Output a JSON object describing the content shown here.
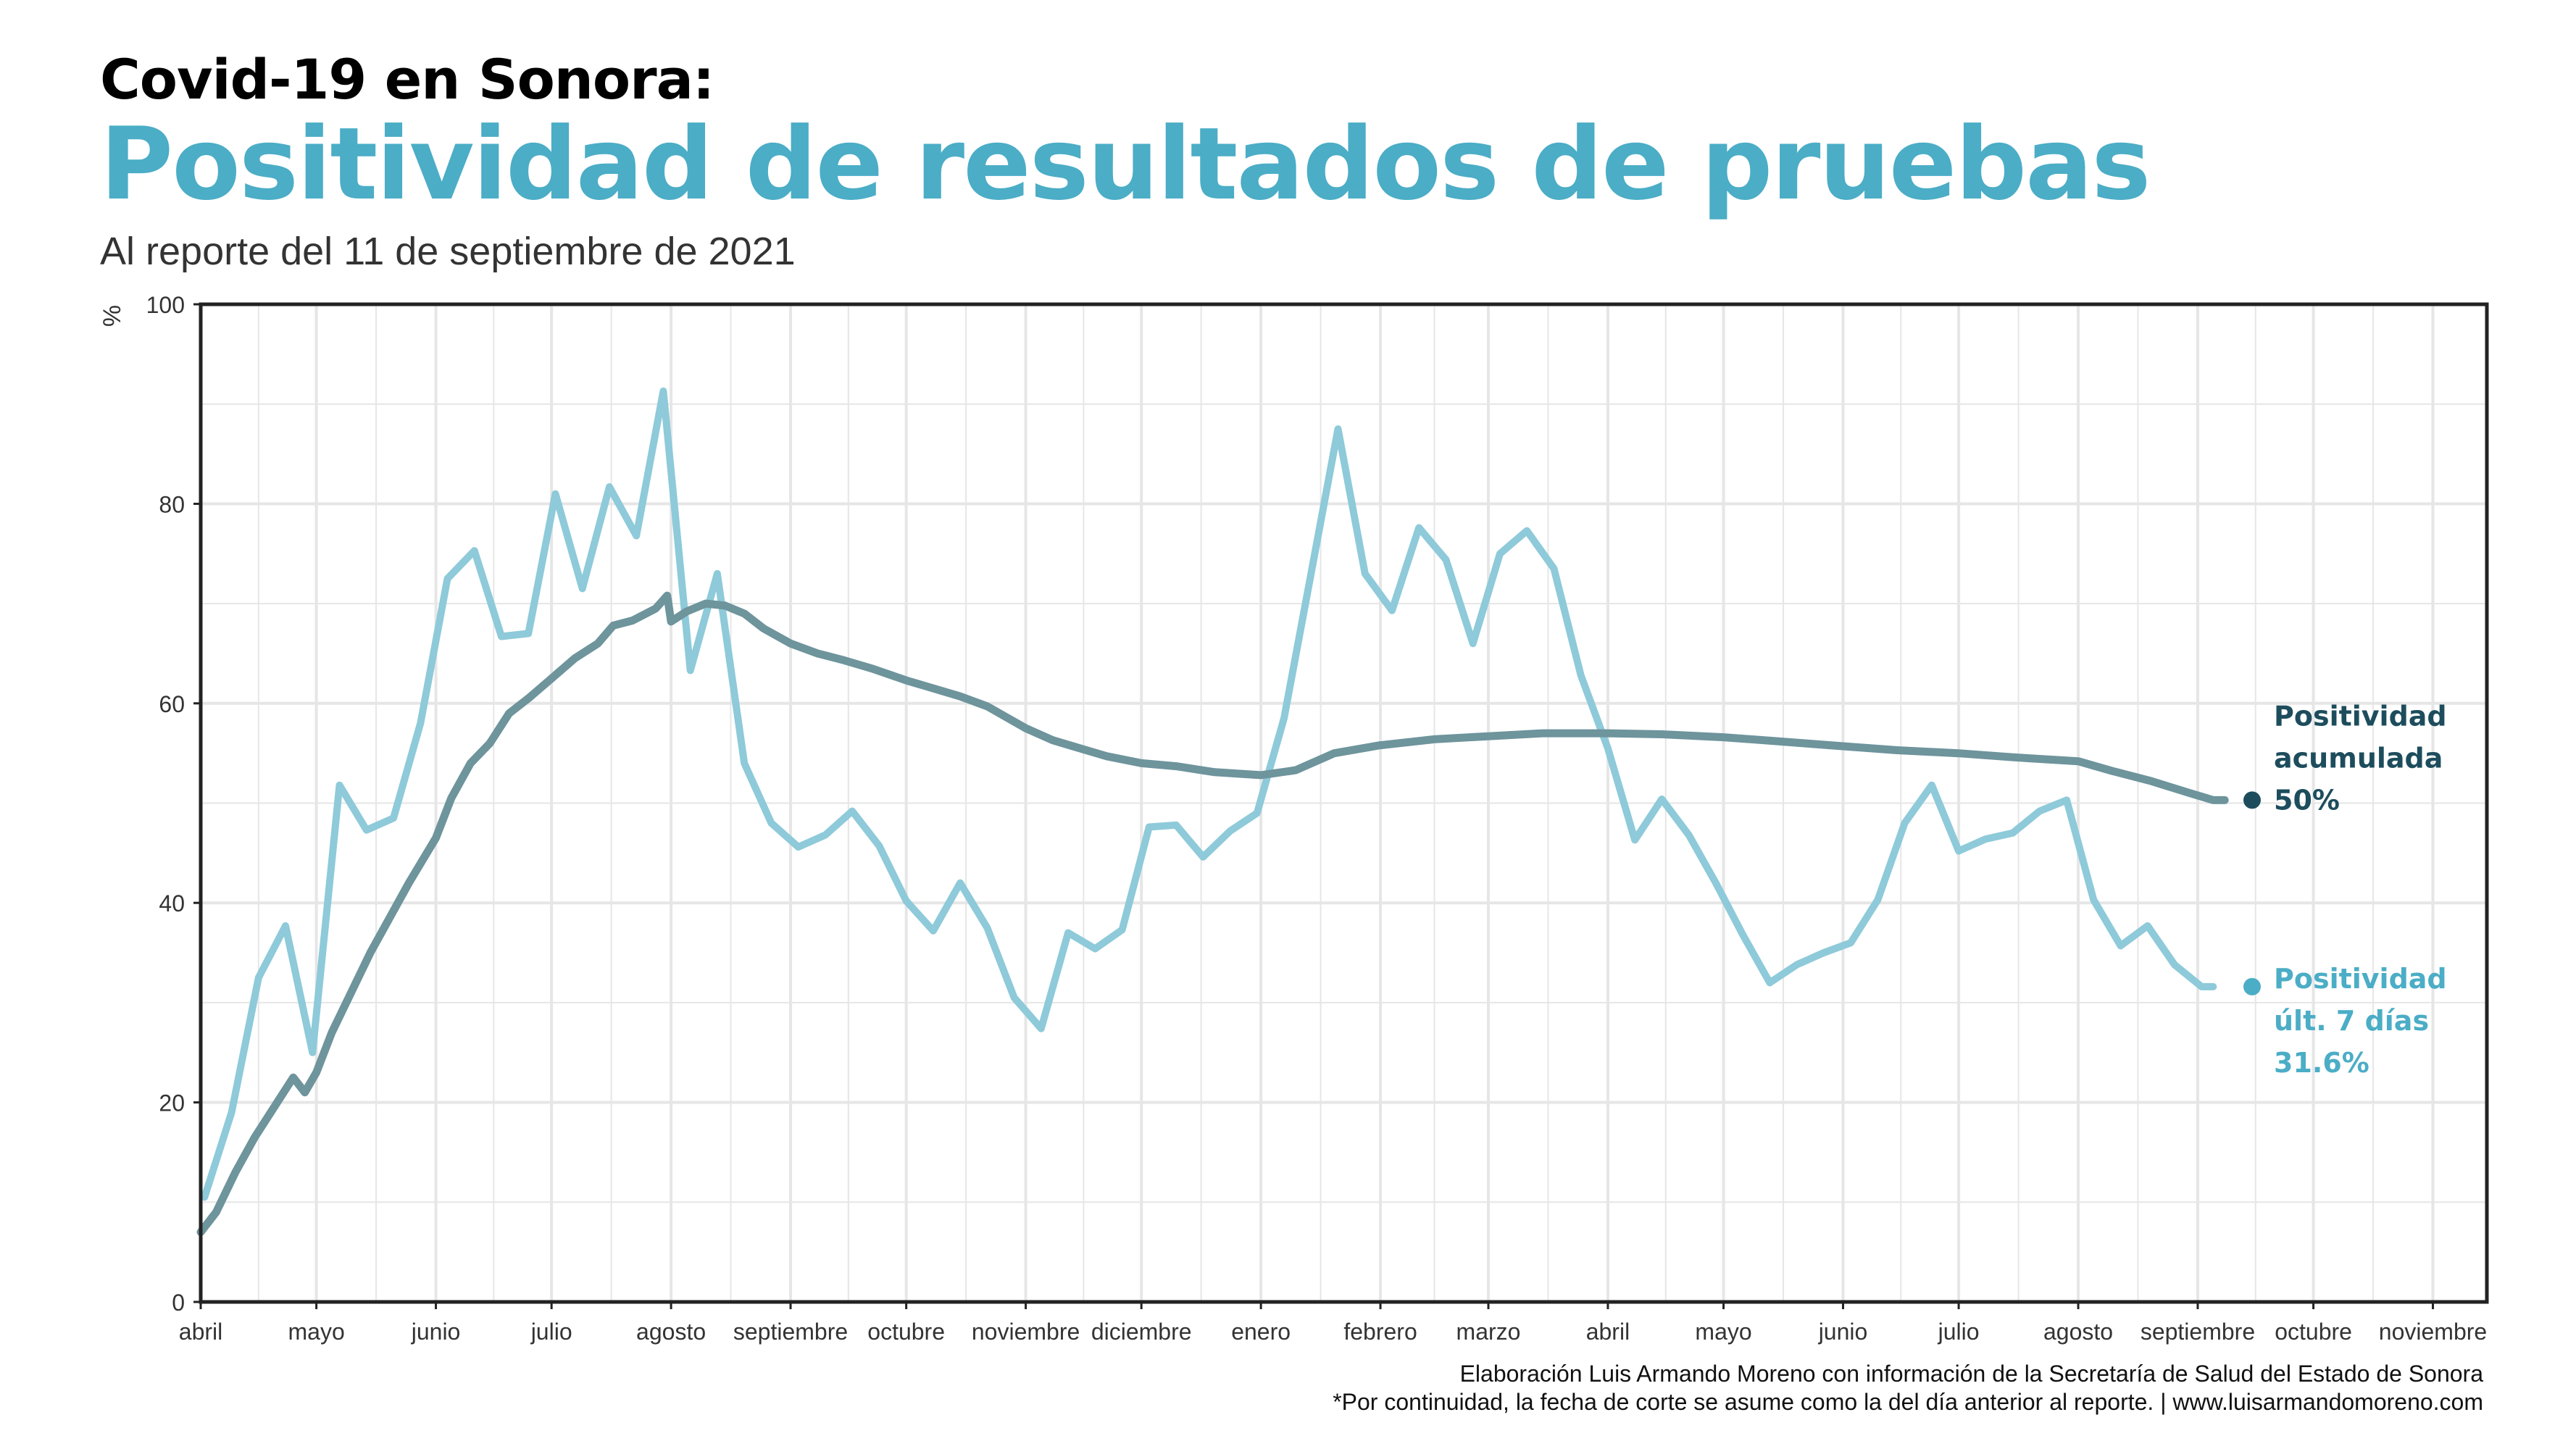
{
  "header": {
    "supertitle": "Covid-19 en Sonora:",
    "title": "Positividad de resultados de pruebas",
    "subtitle": "Al reporte del 11 de septiembre de 2021"
  },
  "caption": {
    "line1": "Elaboración Luis Armando Moreno con información de la Secretaría de Salud del Estado de Sonora",
    "line2": "*Por continuidad, la fecha de corte se asume como la del día anterior al reporte. | www.luisarmandomoreno.com"
  },
  "colors": {
    "weekly": "#8ecad9",
    "cumulative": "#6e949c",
    "cumulative_label": "#1d4d5d",
    "weekly_label": "#4badc6",
    "frame": "#222222",
    "grid": "#e6e6e6"
  },
  "chart_data": {
    "type": "line",
    "ylabel": "%",
    "ylim": [
      0,
      100
    ],
    "yticks": [
      0,
      20,
      40,
      60,
      80,
      100
    ],
    "xlim": [
      "2020-04-01",
      "2021-11-15"
    ],
    "xticks": [
      {
        "date": "2020-04-01",
        "label": "abril"
      },
      {
        "date": "2020-05-01",
        "label": "mayo"
      },
      {
        "date": "2020-06-01",
        "label": "junio"
      },
      {
        "date": "2020-07-01",
        "label": "julio"
      },
      {
        "date": "2020-08-01",
        "label": "agosto"
      },
      {
        "date": "2020-09-01",
        "label": "septiembre"
      },
      {
        "date": "2020-10-01",
        "label": "octubre"
      },
      {
        "date": "2020-11-01",
        "label": "noviembre"
      },
      {
        "date": "2020-12-01",
        "label": "diciembre"
      },
      {
        "date": "2021-01-01",
        "label": "enero"
      },
      {
        "date": "2021-02-01",
        "label": "febrero"
      },
      {
        "date": "2021-03-01",
        "label": "marzo"
      },
      {
        "date": "2021-04-01",
        "label": "abril"
      },
      {
        "date": "2021-05-01",
        "label": "mayo"
      },
      {
        "date": "2021-06-01",
        "label": "junio"
      },
      {
        "date": "2021-07-01",
        "label": "julio"
      },
      {
        "date": "2021-08-01",
        "label": "agosto"
      },
      {
        "date": "2021-09-01",
        "label": "septiembre"
      },
      {
        "date": "2021-10-01",
        "label": "octubre"
      },
      {
        "date": "2021-11-01",
        "label": "noviembre"
      }
    ],
    "grid": true,
    "series": [
      {
        "key": "weekly",
        "annotation": [
          "Positividad",
          "últ. 7 días",
          "31.6%"
        ],
        "points": [
          [
            "2020-04-02",
            10.5
          ],
          [
            "2020-04-09",
            19
          ],
          [
            "2020-04-16",
            32.5
          ],
          [
            "2020-04-23",
            37.7
          ],
          [
            "2020-04-30",
            25
          ],
          [
            "2020-05-07",
            51.8
          ],
          [
            "2020-05-14",
            47.3
          ],
          [
            "2020-05-21",
            48.5
          ],
          [
            "2020-05-28",
            58
          ],
          [
            "2020-06-04",
            72.5
          ],
          [
            "2020-06-11",
            75.3
          ],
          [
            "2020-06-18",
            66.7
          ],
          [
            "2020-06-25",
            67
          ],
          [
            "2020-07-02",
            81
          ],
          [
            "2020-07-09",
            71.5
          ],
          [
            "2020-07-16",
            81.7
          ],
          [
            "2020-07-23",
            76.8
          ],
          [
            "2020-07-30",
            91.3
          ],
          [
            "2020-08-06",
            63.3
          ],
          [
            "2020-08-13",
            73
          ],
          [
            "2020-08-20",
            54
          ],
          [
            "2020-08-27",
            48
          ],
          [
            "2020-09-03",
            45.6
          ],
          [
            "2020-09-10",
            46.8
          ],
          [
            "2020-09-17",
            49.2
          ],
          [
            "2020-09-24",
            45.7
          ],
          [
            "2020-10-01",
            40.2
          ],
          [
            "2020-10-08",
            37.2
          ],
          [
            "2020-10-15",
            42
          ],
          [
            "2020-10-22",
            37.5
          ],
          [
            "2020-10-29",
            30.5
          ],
          [
            "2020-11-05",
            27.4
          ],
          [
            "2020-11-12",
            37
          ],
          [
            "2020-11-19",
            35.4
          ],
          [
            "2020-11-26",
            37.3
          ],
          [
            "2020-12-03",
            47.6
          ],
          [
            "2020-12-10",
            47.8
          ],
          [
            "2020-12-17",
            44.6
          ],
          [
            "2020-12-24",
            47.2
          ],
          [
            "2020-12-31",
            49
          ],
          [
            "2021-01-07",
            58.5
          ],
          [
            "2021-01-14",
            73
          ],
          [
            "2021-01-21",
            87.5
          ],
          [
            "2021-01-28",
            73
          ],
          [
            "2021-02-04",
            69.3
          ],
          [
            "2021-02-11",
            77.6
          ],
          [
            "2021-02-18",
            74.4
          ],
          [
            "2021-02-25",
            66
          ],
          [
            "2021-03-04",
            75
          ],
          [
            "2021-03-11",
            77.3
          ],
          [
            "2021-03-18",
            73.5
          ],
          [
            "2021-03-25",
            62.8
          ],
          [
            "2021-04-01",
            55.5
          ],
          [
            "2021-04-08",
            46.3
          ],
          [
            "2021-04-15",
            50.4
          ],
          [
            "2021-04-22",
            46.8
          ],
          [
            "2021-04-29",
            42
          ],
          [
            "2021-05-06",
            36.8
          ],
          [
            "2021-05-13",
            32
          ],
          [
            "2021-05-20",
            33.8
          ],
          [
            "2021-05-27",
            35
          ],
          [
            "2021-06-03",
            36
          ],
          [
            "2021-06-10",
            40.3
          ],
          [
            "2021-06-17",
            48
          ],
          [
            "2021-06-24",
            51.8
          ],
          [
            "2021-07-01",
            45.2
          ],
          [
            "2021-07-08",
            46.4
          ],
          [
            "2021-07-15",
            47
          ],
          [
            "2021-07-22",
            49.2
          ],
          [
            "2021-07-29",
            50.3
          ],
          [
            "2021-08-05",
            40.3
          ],
          [
            "2021-08-12",
            35.7
          ],
          [
            "2021-08-19",
            37.7
          ],
          [
            "2021-08-26",
            33.8
          ],
          [
            "2021-09-02",
            31.6
          ],
          [
            "2021-09-05",
            31.6
          ]
        ]
      },
      {
        "key": "cumulative",
        "annotation": [
          "Positividad",
          "acumulada",
          "50%"
        ],
        "points": [
          [
            "2020-04-01",
            7
          ],
          [
            "2020-04-05",
            9
          ],
          [
            "2020-04-10",
            13
          ],
          [
            "2020-04-15",
            16.5
          ],
          [
            "2020-04-20",
            19.5
          ],
          [
            "2020-04-25",
            22.5
          ],
          [
            "2020-04-28",
            21
          ],
          [
            "2020-05-01",
            23
          ],
          [
            "2020-05-05",
            27
          ],
          [
            "2020-05-10",
            31
          ],
          [
            "2020-05-15",
            35
          ],
          [
            "2020-05-20",
            38.5
          ],
          [
            "2020-05-25",
            42
          ],
          [
            "2020-06-01",
            46.5
          ],
          [
            "2020-06-05",
            50.5
          ],
          [
            "2020-06-10",
            54
          ],
          [
            "2020-06-15",
            56
          ],
          [
            "2020-06-20",
            59
          ],
          [
            "2020-06-25",
            60.5
          ],
          [
            "2020-07-01",
            62.5
          ],
          [
            "2020-07-07",
            64.5
          ],
          [
            "2020-07-13",
            66
          ],
          [
            "2020-07-17",
            67.8
          ],
          [
            "2020-07-22",
            68.3
          ],
          [
            "2020-07-28",
            69.5
          ],
          [
            "2020-07-31",
            70.8
          ],
          [
            "2020-08-01",
            68.2
          ],
          [
            "2020-08-05",
            69.2
          ],
          [
            "2020-08-10",
            70
          ],
          [
            "2020-08-15",
            69.8
          ],
          [
            "2020-08-20",
            69
          ],
          [
            "2020-08-25",
            67.5
          ],
          [
            "2020-09-01",
            66
          ],
          [
            "2020-09-08",
            65
          ],
          [
            "2020-09-15",
            64.3
          ],
          [
            "2020-09-22",
            63.5
          ],
          [
            "2020-10-01",
            62.3
          ],
          [
            "2020-10-08",
            61.5
          ],
          [
            "2020-10-15",
            60.7
          ],
          [
            "2020-10-22",
            59.7
          ],
          [
            "2020-11-01",
            57.5
          ],
          [
            "2020-11-08",
            56.3
          ],
          [
            "2020-11-15",
            55.5
          ],
          [
            "2020-11-22",
            54.7
          ],
          [
            "2020-12-01",
            54
          ],
          [
            "2020-12-10",
            53.7
          ],
          [
            "2020-12-20",
            53.1
          ],
          [
            "2021-01-01",
            52.8
          ],
          [
            "2021-01-10",
            53.3
          ],
          [
            "2021-01-20",
            55
          ],
          [
            "2021-02-01",
            55.8
          ],
          [
            "2021-02-15",
            56.4
          ],
          [
            "2021-03-01",
            56.7
          ],
          [
            "2021-03-15",
            57
          ],
          [
            "2021-04-01",
            57
          ],
          [
            "2021-04-15",
            56.9
          ],
          [
            "2021-05-01",
            56.6
          ],
          [
            "2021-05-15",
            56.2
          ],
          [
            "2021-06-01",
            55.7
          ],
          [
            "2021-06-15",
            55.3
          ],
          [
            "2021-07-01",
            55
          ],
          [
            "2021-07-15",
            54.6
          ],
          [
            "2021-08-01",
            54.2
          ],
          [
            "2021-08-10",
            53.2
          ],
          [
            "2021-08-20",
            52.2
          ],
          [
            "2021-08-30",
            51
          ],
          [
            "2021-09-05",
            50.3
          ],
          [
            "2021-09-08",
            50.3
          ]
        ]
      }
    ]
  }
}
